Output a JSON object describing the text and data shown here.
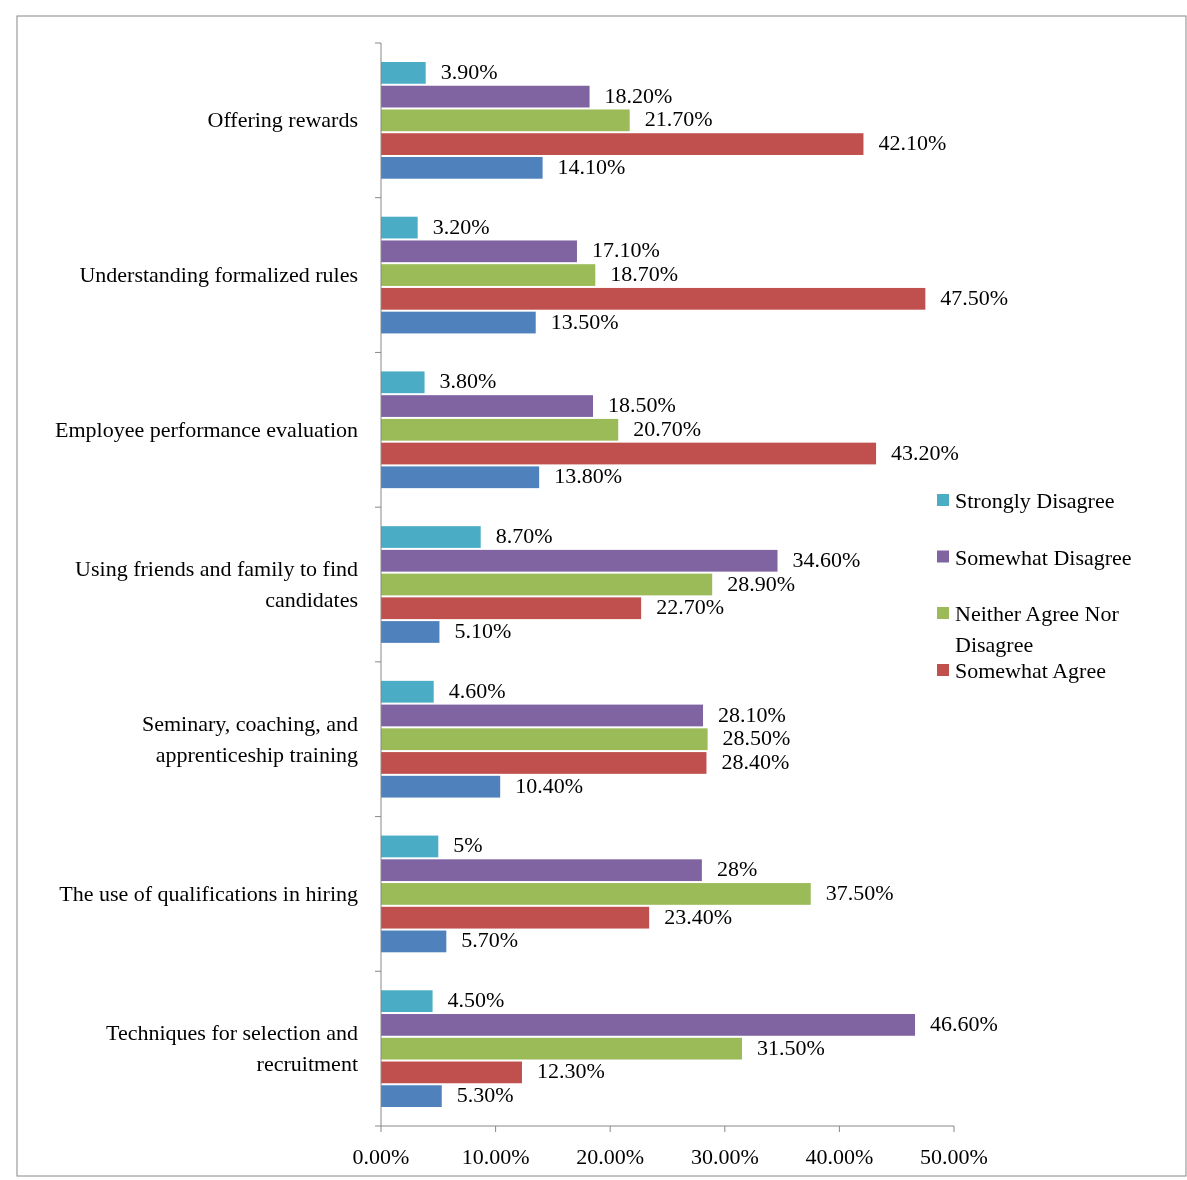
{
  "chart_data": {
    "type": "bar",
    "orientation": "horizontal",
    "categories": [
      "Offering rewards",
      "Understanding formalized rules",
      "Employee performance evaluation",
      "Using friends and family to find candidates",
      "Seminary, coaching, and apprenticeship training",
      "The use of qualifications in hiring",
      "Techniques for selection and recruitment"
    ],
    "series": [
      {
        "name": "Strongly Disagree",
        "color": "#4bacc6",
        "values": [
          3.9,
          3.2,
          3.8,
          8.7,
          4.6,
          5,
          4.5
        ],
        "value_labels": [
          "3.90%",
          "3.20%",
          "3.80%",
          "8.70%",
          "4.60%",
          "5%",
          "4.50%"
        ]
      },
      {
        "name": "Somewhat Disagree",
        "color": "#8064a2",
        "values": [
          18.2,
          17.1,
          18.5,
          34.6,
          28.1,
          28,
          46.6
        ],
        "value_labels": [
          "18.20%",
          "17.10%",
          "18.50%",
          "34.60%",
          "28.10%",
          "28%",
          "46.60%"
        ]
      },
      {
        "name": "Neither Agree Nor Disagree",
        "color": "#9bbb59",
        "values": [
          21.7,
          18.7,
          20.7,
          28.9,
          28.5,
          37.5,
          31.5
        ],
        "value_labels": [
          "21.70%",
          "18.70%",
          "20.70%",
          "28.90%",
          "28.50%",
          "37.50%",
          "31.50%"
        ]
      },
      {
        "name": "Somewhat Agree",
        "color": "#c0504d",
        "values": [
          42.1,
          47.5,
          43.2,
          22.7,
          28.4,
          23.4,
          12.3
        ],
        "value_labels": [
          "42.10%",
          "47.50%",
          "43.20%",
          "22.70%",
          "28.40%",
          "23.40%",
          "12.30%"
        ]
      },
      {
        "color": "#4f81bd",
        "values": [
          14.1,
          13.5,
          13.8,
          5.1,
          10.4,
          5.7,
          5.3
        ],
        "value_labels": [
          "14.10%",
          "13.50%",
          "13.80%",
          "5.10%",
          "10.40%",
          "5.70%",
          "5.30%"
        ]
      }
    ],
    "xlim": [
      0,
      50
    ],
    "xticks": [
      {
        "value": 0,
        "label": "0.00%"
      },
      {
        "value": 10,
        "label": "10.00%"
      },
      {
        "value": 20,
        "label": "20.00%"
      },
      {
        "value": 30,
        "label": "30.00%"
      },
      {
        "value": 40,
        "label": "40.00%"
      },
      {
        "value": 50,
        "label": "50.00%"
      }
    ],
    "legend": "right"
  }
}
